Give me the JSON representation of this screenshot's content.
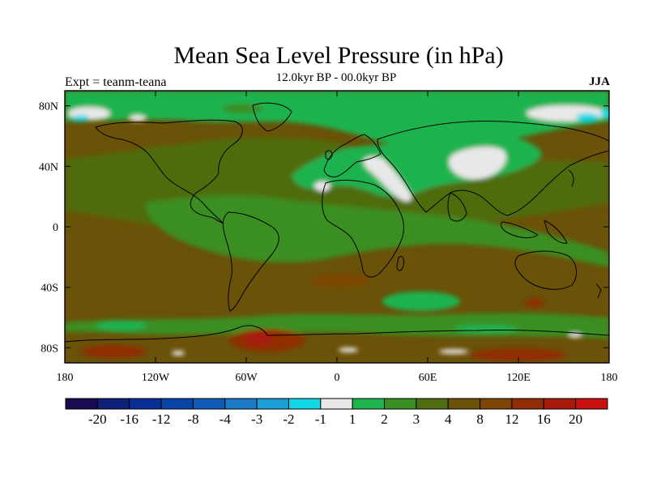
{
  "title": "Mean Sea Level Pressure (in hPa)",
  "subtitle": "12.0kyr BP - 00.0kyr BP",
  "left_label": "Expt = teanm-teana",
  "right_label": "JJA",
  "x_ticks": [
    {
      "lon": -180,
      "label": "180"
    },
    {
      "lon": -120,
      "label": "120W"
    },
    {
      "lon": -60,
      "label": "60W"
    },
    {
      "lon": 0,
      "label": "0"
    },
    {
      "lon": 60,
      "label": "60E"
    },
    {
      "lon": 120,
      "label": "120E"
    },
    {
      "lon": 180,
      "label": "180"
    }
  ],
  "y_ticks": [
    {
      "lat": 80,
      "label": "80N"
    },
    {
      "lat": 40,
      "label": "40N"
    },
    {
      "lat": 0,
      "label": "0"
    },
    {
      "lat": -40,
      "label": "40S"
    },
    {
      "lat": -80,
      "label": "80S"
    }
  ],
  "colorbar": {
    "colors": [
      "#1a0a52",
      "#0e1f78",
      "#0a2e96",
      "#0a45a8",
      "#0f5cb8",
      "#1c7ac6",
      "#1d9ed4",
      "#12d8e6",
      "#e8e8e8",
      "#1db34f",
      "#3a8f22",
      "#4f6c10",
      "#6a5208",
      "#7e4606",
      "#902d04",
      "#a81a0a",
      "#c81010"
    ],
    "labels": [
      "-20",
      "-16",
      "-12",
      "-8",
      "-4",
      "-3",
      "-2",
      "-1",
      "1",
      "2",
      "3",
      "4",
      "8",
      "12",
      "16",
      "20"
    ]
  }
}
